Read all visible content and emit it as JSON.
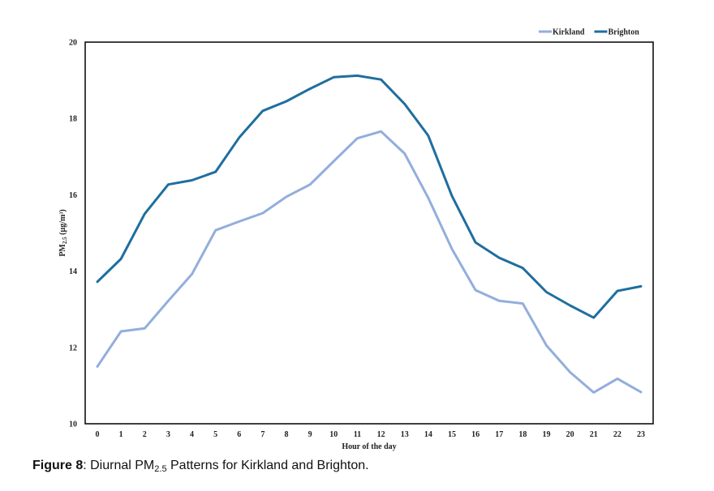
{
  "chart_data": {
    "type": "line",
    "title": "",
    "xlabel": "Hour of the day",
    "ylabel": {
      "prefix": "PM",
      "subscript": "2.5",
      "suffix": " (µg/m³)"
    },
    "x": [
      0,
      1,
      2,
      3,
      4,
      5,
      6,
      7,
      8,
      9,
      10,
      11,
      12,
      13,
      14,
      15,
      16,
      17,
      18,
      19,
      20,
      21,
      22,
      23
    ],
    "ylim": [
      10,
      20
    ],
    "yticks": [
      10,
      12,
      14,
      16,
      18,
      20
    ],
    "grid": false,
    "legend_position": "top-right",
    "series": [
      {
        "name": "Kirkland",
        "color": "#92aedc",
        "values": [
          11.5,
          12.42,
          12.5,
          13.22,
          13.92,
          15.07,
          15.3,
          15.52,
          15.95,
          16.27,
          16.88,
          17.48,
          17.66,
          17.08,
          15.92,
          14.58,
          13.5,
          13.22,
          13.15,
          12.05,
          11.35,
          10.82,
          11.18,
          10.83
        ]
      },
      {
        "name": "Brighton",
        "color": "#1f6e9f",
        "values": [
          13.72,
          14.32,
          15.5,
          16.27,
          16.38,
          16.6,
          17.5,
          18.2,
          18.45,
          18.78,
          19.08,
          19.12,
          19.02,
          18.38,
          17.55,
          15.97,
          14.75,
          14.35,
          14.08,
          13.45,
          13.1,
          12.78,
          13.48,
          13.6
        ]
      }
    ]
  },
  "caption": {
    "label": "Figure 8",
    "separator": ": ",
    "text_before": "Diurnal PM",
    "subscript": "2.5",
    "text_after": " Patterns for Kirkland and Brighton."
  }
}
